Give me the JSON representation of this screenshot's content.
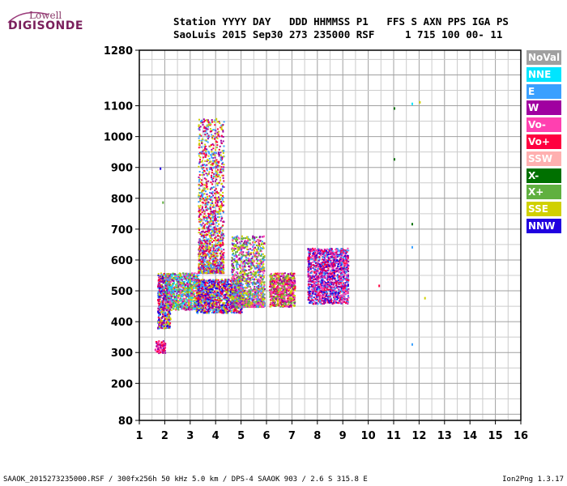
{
  "logo": {
    "top": "Lowell",
    "main": "DIGISONDE"
  },
  "header": {
    "line1": "Station YYYY DAY   DDD HHMMSS P1   FFS S AXN PPS IGA PS",
    "line2": "SaoLuis 2015 Sep30 273 235000 RSF     1 715 100 00- 11"
  },
  "legend": [
    {
      "label": "NoVal",
      "bg": "#a0a0a0",
      "fg": "#ffffff"
    },
    {
      "label": "NNE",
      "bg": "#00e5ff",
      "fg": "#ffffff"
    },
    {
      "label": "E",
      "bg": "#3aa0ff",
      "fg": "#ffffff"
    },
    {
      "label": "W",
      "bg": "#a000a0",
      "fg": "#ffffff"
    },
    {
      "label": "Vo-",
      "bg": "#ff40b0",
      "fg": "#ffffff"
    },
    {
      "label": "Vo+",
      "bg": "#ff0040",
      "fg": "#ffffff"
    },
    {
      "label": "SSW",
      "bg": "#ffb0b0",
      "fg": "#ffffff"
    },
    {
      "label": "X-",
      "bg": "#007000",
      "fg": "#ffffff"
    },
    {
      "label": "X+",
      "bg": "#60b040",
      "fg": "#ffffff"
    },
    {
      "label": "SSE",
      "bg": "#d0d000",
      "fg": "#ffffff"
    },
    {
      "label": "NNW",
      "bg": "#2000e0",
      "fg": "#ffffff"
    }
  ],
  "footer": {
    "left": "SAAOK_2015273235000.RSF / 300fx256h 50 kHz 5.0 km / DPS-4 SAAOK 903 / 2.6 S 315.8 E",
    "right": "Ion2Png 1.3.17"
  },
  "chart_data": {
    "type": "scatter",
    "title": "",
    "xlabel": "",
    "ylabel": "",
    "xlim": [
      1,
      16
    ],
    "ylim": [
      80,
      1280
    ],
    "xticks": [
      1,
      2,
      3,
      4,
      5,
      6,
      7,
      8,
      9,
      10,
      11,
      12,
      13,
      14,
      15,
      16
    ],
    "yticks": [
      80,
      200,
      300,
      400,
      500,
      600,
      700,
      800,
      900,
      1000,
      1100,
      1280
    ],
    "grid": true,
    "clusters": [
      {
        "x": [
          1.6,
          2.0
        ],
        "y": [
          300,
          340
        ],
        "color_mix": [
          "Vo+",
          "W",
          "Vo-"
        ]
      },
      {
        "x": [
          1.7,
          2.2
        ],
        "y": [
          380,
          560
        ],
        "color_mix": [
          "W",
          "Vo+",
          "NNW",
          "SSE",
          "E"
        ]
      },
      {
        "x": [
          2.0,
          3.3
        ],
        "y": [
          440,
          560
        ],
        "color_mix": [
          "SSE",
          "Vo-",
          "W",
          "E",
          "NNE",
          "X+"
        ]
      },
      {
        "x": [
          3.2,
          5.0
        ],
        "y": [
          430,
          540
        ],
        "color_mix": [
          "W",
          "Vo+",
          "SSE",
          "E",
          "NNW"
        ]
      },
      {
        "x": [
          3.3,
          4.3
        ],
        "y": [
          560,
          1060
        ],
        "color_mix": [
          "SSE",
          "W",
          "Vo+",
          "E"
        ]
      },
      {
        "x": [
          4.6,
          5.9
        ],
        "y": [
          450,
          680
        ],
        "color_mix": [
          "SSE",
          "W",
          "E",
          "X+",
          "Vo-"
        ]
      },
      {
        "x": [
          6.1,
          7.1
        ],
        "y": [
          450,
          560
        ],
        "color_mix": [
          "Vo+",
          "W",
          "Vo-",
          "X+",
          "SSE"
        ]
      },
      {
        "x": [
          7.6,
          9.2
        ],
        "y": [
          460,
          640
        ],
        "color_mix": [
          "Vo+",
          "W",
          "Vo-",
          "E",
          "NNW"
        ]
      }
    ],
    "sparse_points": [
      {
        "x": 11.0,
        "y": 1095,
        "s": "X-"
      },
      {
        "x": 11.0,
        "y": 930,
        "s": "X-"
      },
      {
        "x": 11.7,
        "y": 1110,
        "s": "NNE"
      },
      {
        "x": 12.0,
        "y": 1115,
        "s": "SSE"
      },
      {
        "x": 11.7,
        "y": 720,
        "s": "X-"
      },
      {
        "x": 11.7,
        "y": 645,
        "s": "E"
      },
      {
        "x": 11.7,
        "y": 330,
        "s": "E"
      },
      {
        "x": 12.2,
        "y": 480,
        "s": "SSE"
      },
      {
        "x": 10.4,
        "y": 520,
        "s": "Vo+"
      },
      {
        "x": 1.8,
        "y": 900,
        "s": "NNW"
      },
      {
        "x": 1.9,
        "y": 790,
        "s": "X+"
      },
      {
        "x": 3.8,
        "y": 900,
        "s": "W"
      },
      {
        "x": 4.0,
        "y": 1060,
        "s": "SSE"
      }
    ]
  }
}
